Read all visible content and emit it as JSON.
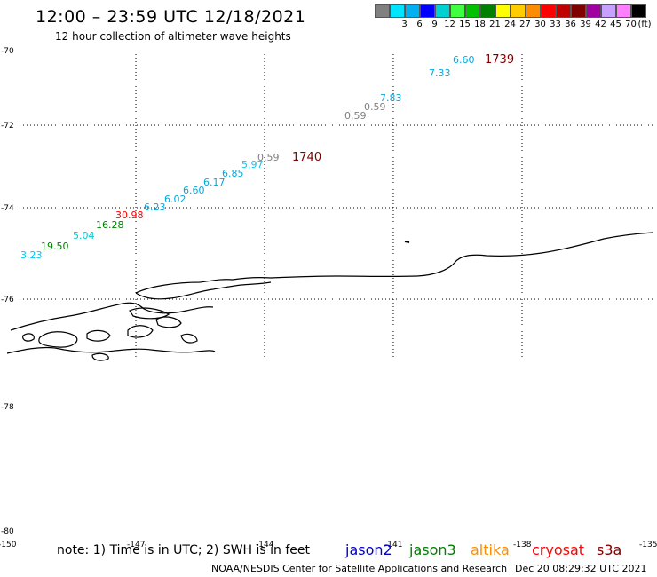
{
  "header": {
    "title": "12:00 – 23:59 UTC 12/18/2021",
    "subtitle": "12 hour collection of altimeter wave heights"
  },
  "legend": {
    "unit": "(ft)",
    "bins": [
      {
        "label": "",
        "color": "#808080"
      },
      {
        "label": "3",
        "color": "#00e5ff"
      },
      {
        "label": "6",
        "color": "#00b0f0"
      },
      {
        "label": "9",
        "color": "#0000ff"
      },
      {
        "label": "12",
        "color": "#00d0d0"
      },
      {
        "label": "15",
        "color": "#40ff40"
      },
      {
        "label": "18",
        "color": "#00c000"
      },
      {
        "label": "21",
        "color": "#008000"
      },
      {
        "label": "24",
        "color": "#ffff00"
      },
      {
        "label": "27",
        "color": "#ffcc00"
      },
      {
        "label": "30",
        "color": "#ff8c00"
      },
      {
        "label": "33",
        "color": "#ff0000"
      },
      {
        "label": "36",
        "color": "#c00000"
      },
      {
        "label": "39",
        "color": "#800000"
      },
      {
        "label": "42",
        "color": "#a000a0"
      },
      {
        "label": "45",
        "color": "#c8a0ff"
      },
      {
        "label": "70",
        "color": "#ff80ff"
      },
      {
        "label": "",
        "color": "#000000"
      }
    ]
  },
  "axes": {
    "lat_labels": [
      "-70",
      "-72",
      "-74",
      "-76",
      "-78",
      "-80"
    ],
    "lon_labels": [
      "-150",
      "-147",
      "-144",
      "-141",
      "-138",
      "-135"
    ]
  },
  "observations": [
    {
      "value": "6.60",
      "color": "#00a8e0"
    },
    {
      "value": "1739",
      "color": "#800000"
    },
    {
      "value": "7.33",
      "color": "#00a8e0"
    },
    {
      "value": "7.83",
      "color": "#00a8e0"
    },
    {
      "value": "0.59",
      "color": "#808080"
    },
    {
      "value": "0.59",
      "color": "#808080"
    },
    {
      "value": "0.59",
      "color": "#808080"
    },
    {
      "value": "1740",
      "color": "#800000"
    },
    {
      "value": "5.97",
      "color": "#00c8f0"
    },
    {
      "value": "6.85",
      "color": "#00a8e0"
    },
    {
      "value": "6.17",
      "color": "#00a8e0"
    },
    {
      "value": "6.60",
      "color": "#00a8e0"
    },
    {
      "value": "6.02",
      "color": "#00a8e0"
    },
    {
      "value": "6.23",
      "color": "#00a8e0"
    },
    {
      "value": "30.98",
      "color": "#ff0000"
    },
    {
      "value": "16.28",
      "color": "#008000"
    },
    {
      "value": "5.04",
      "color": "#00c8d0"
    },
    {
      "value": "19.50",
      "color": "#008000"
    },
    {
      "value": "3.23",
      "color": "#00c8f0"
    }
  ],
  "footer": {
    "note": "note: 1) Time is in UTC; 2) SWH is in feet",
    "satellites": [
      {
        "name": "jason2",
        "color": "#0000cc"
      },
      {
        "name": "jason3",
        "color": "#008000"
      },
      {
        "name": "altika",
        "color": "#ff8c00"
      },
      {
        "name": "cryosat",
        "color": "#ff0000"
      },
      {
        "name": "s3a",
        "color": "#800000"
      }
    ],
    "credit": "NOAA/NESDIS Center for Satellite Applications and Research",
    "timestamp": "Dec 20 08:29:32 UTC 2021"
  }
}
